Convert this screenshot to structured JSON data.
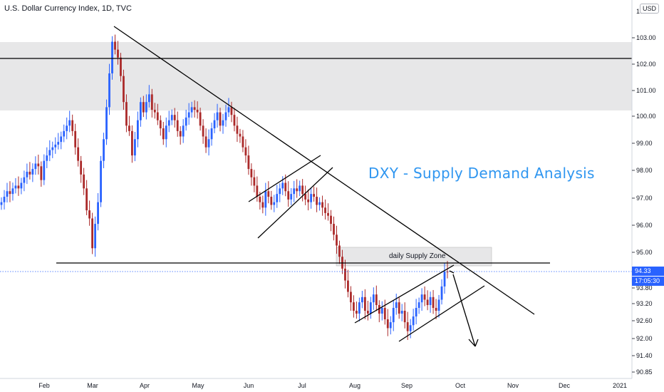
{
  "header": {
    "symbol_title": "U.S. Dollar Currency Index, 1D, TVC",
    "currency": "USD"
  },
  "overlay": {
    "title": "DXY - Supply Demand Analysis",
    "zone_label": "daily Supply Zone",
    "title_color": "#2f96f0"
  },
  "price_axis": {
    "ticks": [
      "103.00",
      "102.00",
      "101.00",
      "100.00",
      "99.00",
      "98.00",
      "97.00",
      "96.00",
      "95.00",
      "93.80",
      "93.20",
      "92.60",
      "92.00",
      "91.40",
      "90.85"
    ],
    "top_partial": "104.00",
    "last_price": "94.33",
    "countdown": "17:05:30"
  },
  "time_axis": {
    "labels": [
      "Feb",
      "Mar",
      "Apr",
      "May",
      "Jun",
      "Jul",
      "Aug",
      "Sep",
      "Oct",
      "Nov",
      "Dec",
      "2021"
    ]
  },
  "colors": {
    "up": "#2962ff",
    "down": "#ab2a2a",
    "zone_fill": "#e7e7e8",
    "last_price_line": "#2962ff"
  },
  "chart_data": {
    "type": "candlestick",
    "title": "U.S. Dollar Currency Index, 1D, TVC",
    "ylabel": "USD",
    "ylim": [
      90.85,
      104.0
    ],
    "last_close": 94.33,
    "x_start": "2020-01-13",
    "x_end": "2020-09-25",
    "closes": [
      96.85,
      97.05,
      97.25,
      97.15,
      97.35,
      97.45,
      97.35,
      97.55,
      97.75,
      97.95,
      97.85,
      98.05,
      98.25,
      98.15,
      97.65,
      98.35,
      98.55,
      98.75,
      98.85,
      98.95,
      99.05,
      99.25,
      99.45,
      99.65,
      99.85,
      99.45,
      98.85,
      98.35,
      97.85,
      97.35,
      96.55,
      96.25,
      95.15,
      96.05,
      96.85,
      98.35,
      99.15,
      100.35,
      101.65,
      102.85,
      102.55,
      102.25,
      101.55,
      100.55,
      99.65,
      99.45,
      98.55,
      99.15,
      99.85,
      100.55,
      100.15,
      100.55,
      100.85,
      100.25,
      100.15,
      99.85,
      99.55,
      99.15,
      99.65,
      99.85,
      100.05,
      99.85,
      99.45,
      99.25,
      99.65,
      99.95,
      100.15,
      100.35,
      100.25,
      100.15,
      99.65,
      99.25,
      98.85,
      99.15,
      99.55,
      99.85,
      100.15,
      99.65,
      99.85,
      100.15,
      100.35,
      100.05,
      99.65,
      99.35,
      99.25,
      98.85,
      98.55,
      98.05,
      97.75,
      97.45,
      97.05,
      96.85,
      96.65,
      97.25,
      97.05,
      96.75,
      96.85,
      97.15,
      97.35,
      97.55,
      97.25,
      96.95,
      97.15,
      97.35,
      97.25,
      97.45,
      97.15,
      96.95,
      96.85,
      97.15,
      97.05,
      96.75,
      96.85,
      96.65,
      96.45,
      96.35,
      96.05,
      95.65,
      95.25,
      94.85,
      94.45,
      94.05,
      93.65,
      93.25,
      92.95,
      92.85,
      93.25,
      93.45,
      92.95,
      92.85,
      93.25,
      93.55,
      93.15,
      92.85,
      93.05,
      92.65,
      92.35,
      92.55,
      93.05,
      93.25,
      92.85,
      92.95,
      92.55,
      92.25,
      92.45,
      92.75,
      93.05,
      93.25,
      93.55,
      93.35,
      93.15,
      93.45,
      93.05,
      92.95,
      93.35,
      93.85,
      94.35,
      94.33
    ],
    "annotations": [
      {
        "type": "zone",
        "label": "",
        "y_range": [
          100.2,
          102.8
        ]
      },
      {
        "type": "hline",
        "y": 102.2
      },
      {
        "type": "hline",
        "y": 94.65
      },
      {
        "type": "zone",
        "label": "daily Supply Zone",
        "y_range": [
          94.55,
          95.25
        ]
      },
      {
        "type": "hline",
        "y": 94.33,
        "style": "dotted",
        "label": "last price"
      },
      {
        "type": "trendline",
        "label": "descending resistance"
      },
      {
        "type": "channel",
        "label": "rising channel Jun"
      },
      {
        "type": "channel",
        "label": "rising channel Aug-Sep"
      },
      {
        "type": "arrow",
        "label": "projected decline"
      }
    ]
  }
}
